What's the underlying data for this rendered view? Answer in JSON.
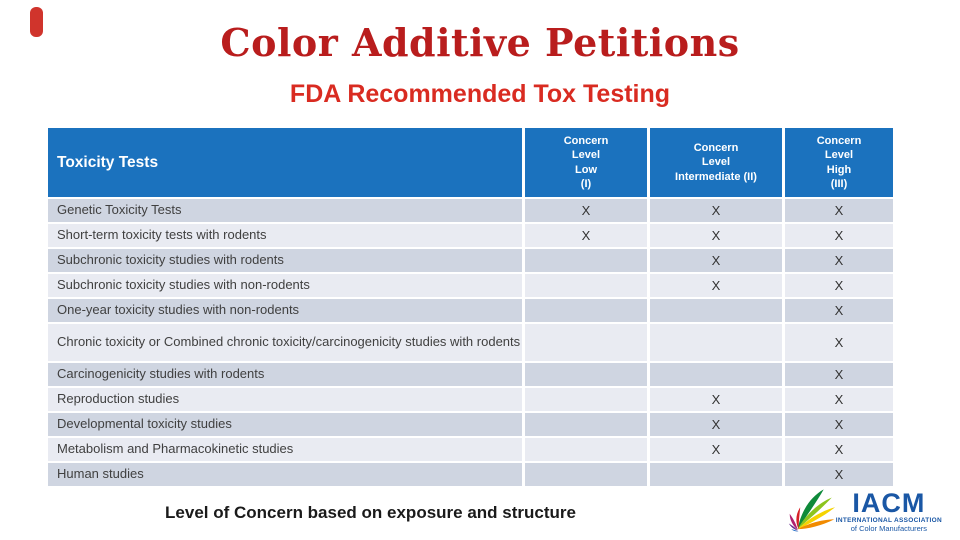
{
  "slide": {
    "title": "Color Additive Petitions",
    "subtitle": "FDA Recommended Tox Testing",
    "footer": "Level of Concern based on exposure and structure",
    "colors": {
      "title": "#b91d1d",
      "subtitle": "#d92b21",
      "accent_bar": "#d0342c",
      "header_bg": "#1b72be",
      "header_text": "#ffffff",
      "row_dark": "#cfd5e1",
      "row_light": "#e9ebf2",
      "body_text": "#404040",
      "logo_blue": "#1a57a5"
    }
  },
  "table": {
    "header": {
      "col1": "Toxicity Tests",
      "col2": "Concern\nLevel\nLow\n(I)",
      "col3": "Concern\nLevel\nIntermediate (II)",
      "col4": "Concern\nLevel\nHigh\n(III)"
    },
    "rows": [
      {
        "label": "Genetic Toxicity Tests",
        "low": "X",
        "intermediate": "X",
        "high": "X"
      },
      {
        "label": "Short-term toxicity tests with rodents",
        "low": "X",
        "intermediate": "X",
        "high": "X"
      },
      {
        "label": "Subchronic toxicity studies with rodents",
        "low": "",
        "intermediate": "X",
        "high": "X"
      },
      {
        "label": "Subchronic toxicity studies with non-rodents",
        "low": "",
        "intermediate": "X",
        "high": "X"
      },
      {
        "label": "One-year toxicity studies with non-rodents",
        "low": "",
        "intermediate": "",
        "high": "X"
      },
      {
        "label": "Chronic toxicity or Combined chronic toxicity/carcinogenicity studies with rodents",
        "low": "",
        "intermediate": "",
        "high": "X"
      },
      {
        "label": "Carcinogenicity studies with rodents",
        "low": "",
        "intermediate": "",
        "high": "X"
      },
      {
        "label": "Reproduction studies",
        "low": "",
        "intermediate": "X",
        "high": "X"
      },
      {
        "label": "Developmental toxicity studies",
        "low": "",
        "intermediate": "X",
        "high": "X"
      },
      {
        "label": "Metabolism and Pharmacokinetic studies",
        "low": "",
        "intermediate": "X",
        "high": "X"
      },
      {
        "label": "Human studies",
        "low": "",
        "intermediate": "",
        "high": "X"
      }
    ]
  },
  "logo": {
    "acronym": "IACM",
    "line1": "INTERNATIONAL ASSOCIATION",
    "line2": "of Color Manufacturers"
  }
}
